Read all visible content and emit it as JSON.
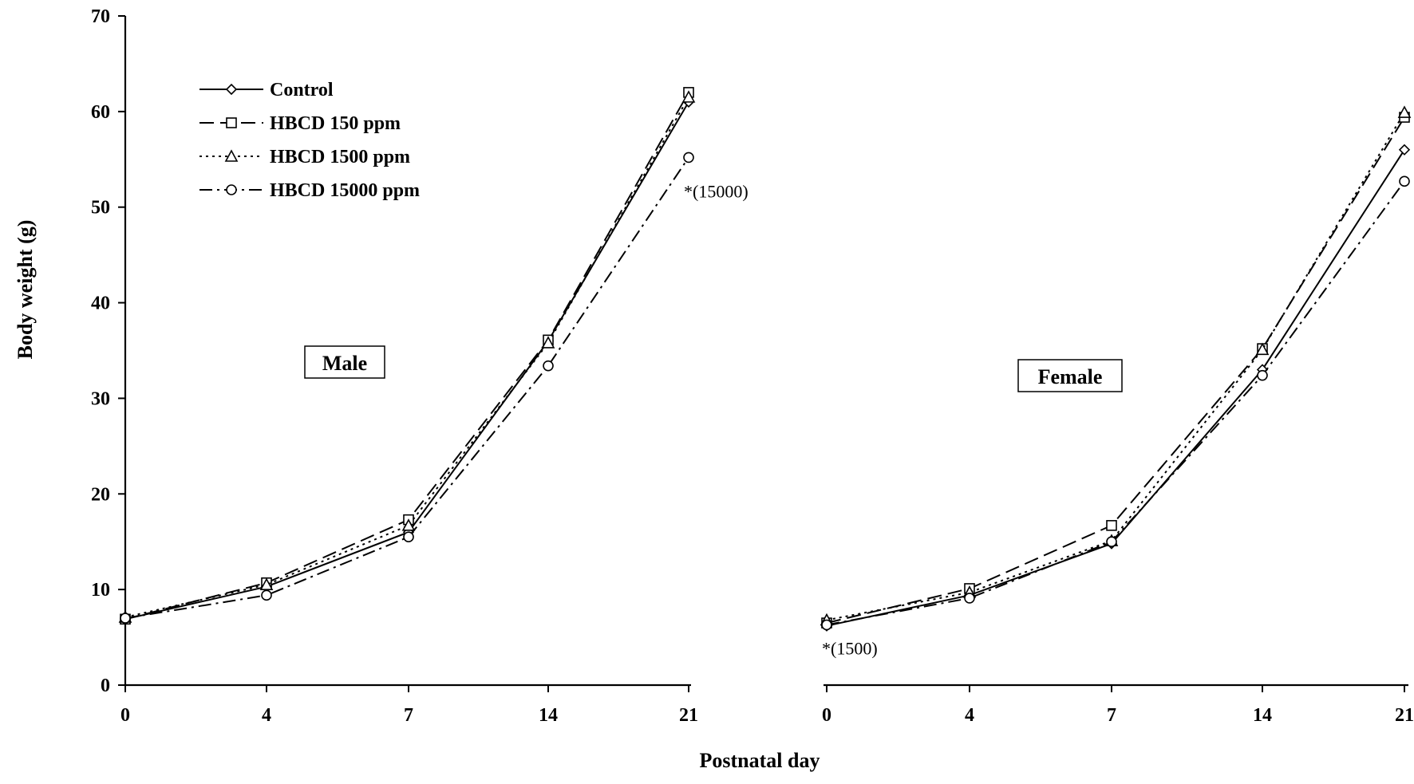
{
  "chart_data": {
    "type": "line",
    "ylabel": "Body weight (g)",
    "xlabel": "Postnatal day",
    "ylim": [
      0,
      70
    ],
    "yticks": [
      "0",
      "10",
      "20",
      "30",
      "40",
      "50",
      "60",
      "70"
    ],
    "categories": [
      "0",
      "4",
      "7",
      "14",
      "21"
    ],
    "grid": false,
    "legend_position": "top-left",
    "legend": [
      {
        "name": "Control",
        "marker": "diamond",
        "dash": "solid"
      },
      {
        "name": "HBCD 150 ppm",
        "marker": "square",
        "dash": "dashed"
      },
      {
        "name": "HBCD 1500 ppm",
        "marker": "triangle",
        "dash": "dotted"
      },
      {
        "name": "HBCD 15000 ppm",
        "marker": "circle",
        "dash": "dash-dot"
      }
    ],
    "panels": [
      {
        "label": "Male",
        "series": [
          {
            "name": "Control",
            "values": [
              6.9,
              10.3,
              16.0,
              36.0,
              61.0
            ]
          },
          {
            "name": "HBCD 150 ppm",
            "values": [
              6.9,
              10.7,
              17.3,
              36.1,
              62.0
            ]
          },
          {
            "name": "HBCD 1500 ppm",
            "values": [
              7.1,
              10.5,
              16.7,
              35.8,
              61.5
            ]
          },
          {
            "name": "HBCD 15000 ppm",
            "values": [
              7.0,
              9.4,
              15.5,
              33.4,
              55.2
            ]
          }
        ],
        "annotations": [
          {
            "text": "*(15000)",
            "x": "21",
            "y": 51
          }
        ]
      },
      {
        "label": "Female",
        "series": [
          {
            "name": "Control",
            "values": [
              6.2,
              9.4,
              14.8,
              33.0,
              56.0
            ]
          },
          {
            "name": "HBCD 150 ppm",
            "values": [
              6.5,
              10.1,
              16.7,
              35.2,
              59.4
            ]
          },
          {
            "name": "HBCD 1500 ppm",
            "values": [
              6.8,
              9.7,
              15.1,
              35.1,
              59.9
            ]
          },
          {
            "name": "HBCD 15000 ppm",
            "values": [
              6.3,
              9.1,
              15.0,
              32.4,
              52.7
            ]
          }
        ],
        "annotations": [
          {
            "text": "*(1500)",
            "x": "0",
            "y": 3.2
          }
        ]
      }
    ]
  }
}
